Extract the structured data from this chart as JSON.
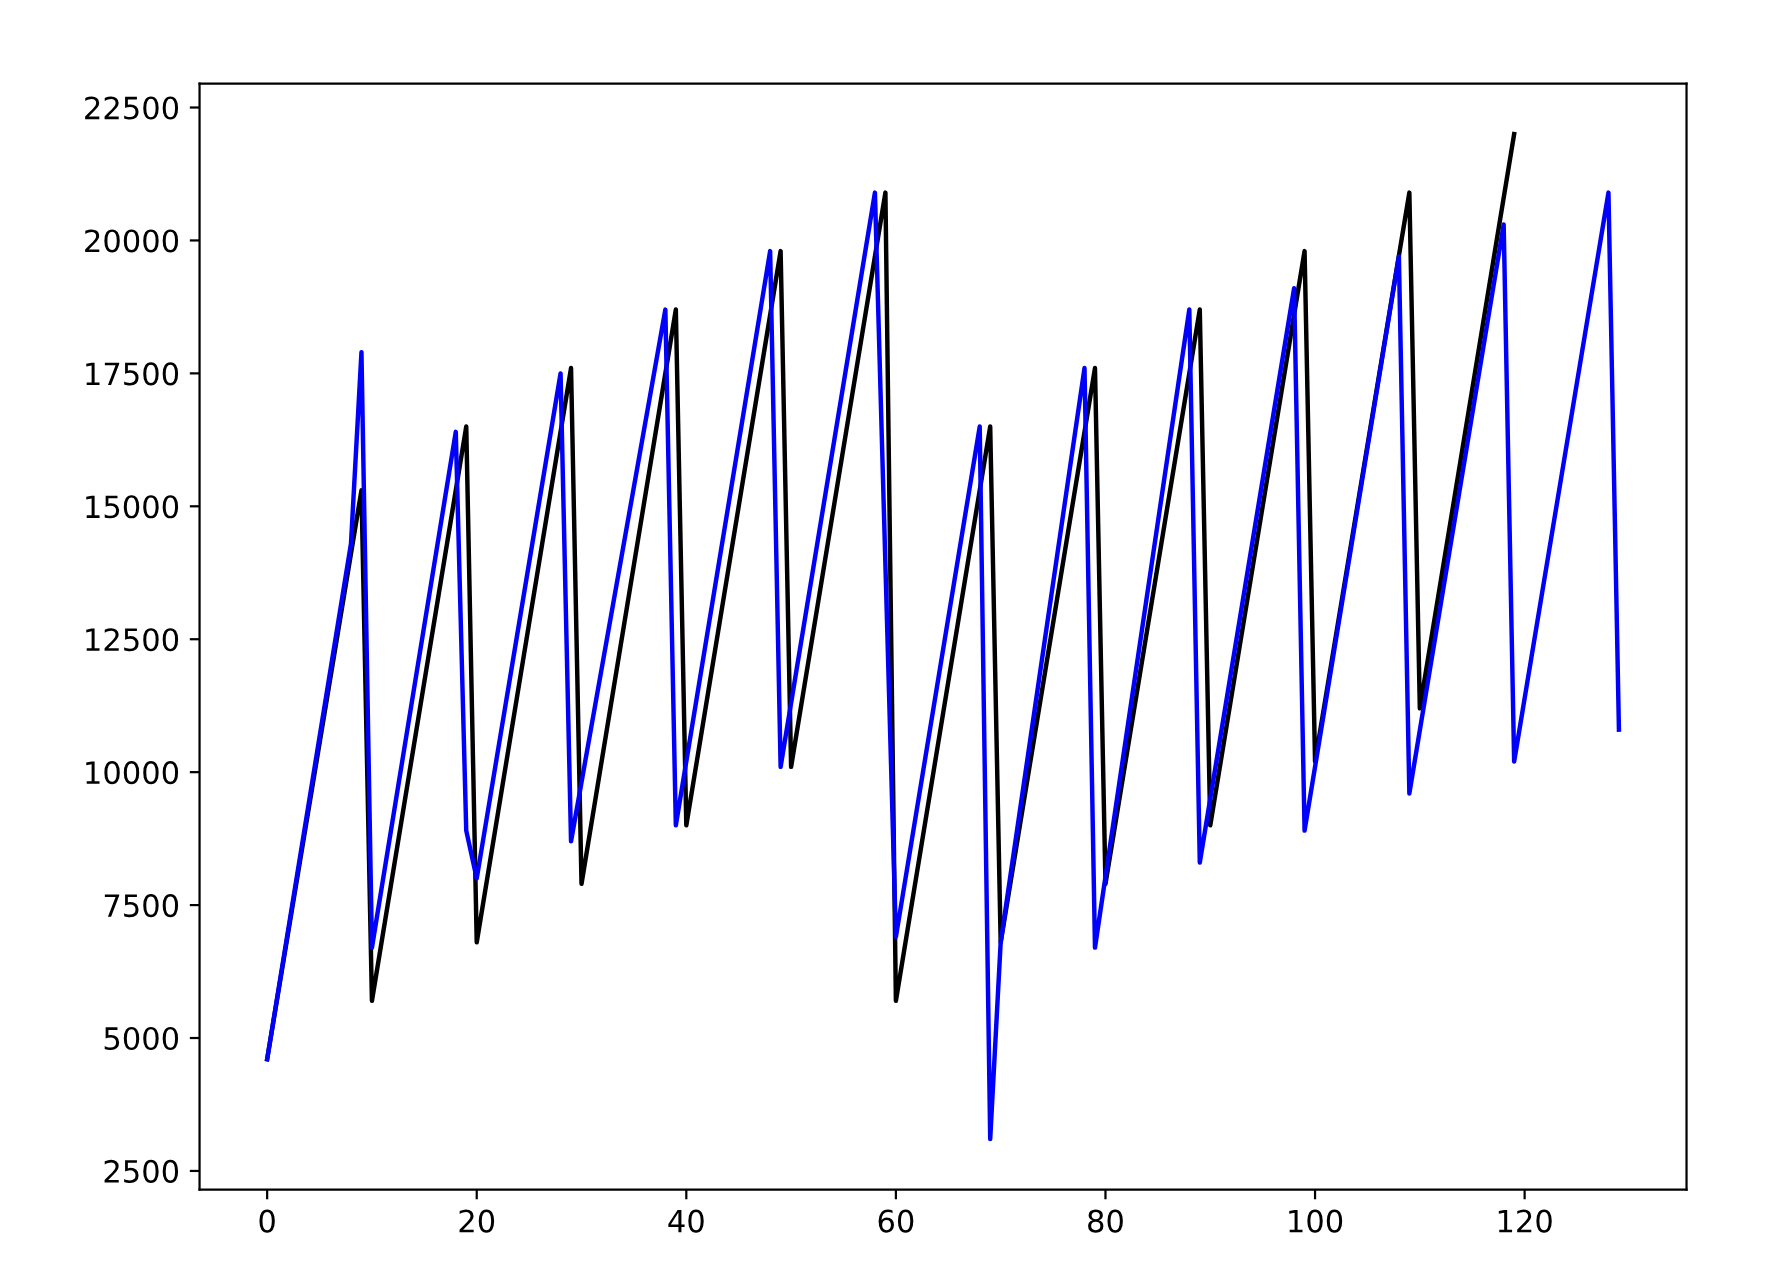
{
  "chart_data": {
    "type": "line",
    "series": [
      {
        "color": "#000000",
        "x": [
          0,
          9,
          10,
          19,
          20,
          29,
          30,
          39,
          40,
          49,
          50,
          59,
          60,
          69,
          70,
          79,
          80,
          89,
          90,
          99,
          100,
          109,
          110,
          119
        ],
        "values": [
          4600,
          15300,
          5700,
          16500,
          6800,
          17600,
          7900,
          18700,
          9000,
          19800,
          10100,
          20900,
          5700,
          16500,
          6800,
          17600,
          7900,
          18700,
          9000,
          19800,
          10200,
          20900,
          11200,
          22000
        ]
      },
      {
        "color": "#0000ff",
        "x": [
          0,
          8,
          9,
          10,
          18,
          19,
          20,
          28,
          29,
          38,
          39,
          48,
          49,
          58,
          60,
          68,
          69,
          70,
          78,
          79,
          88,
          89,
          98,
          99,
          108,
          109,
          118,
          119,
          128,
          129
        ],
        "values": [
          4600,
          14300,
          17900,
          6700,
          16400,
          8900,
          8000,
          17500,
          8700,
          18700,
          9000,
          19800,
          10100,
          20900,
          6900,
          16500,
          3100,
          6800,
          17600,
          6700,
          18700,
          8300,
          19100,
          8900,
          19700,
          9600,
          20300,
          10200,
          20900,
          10800
        ]
      }
    ],
    "xlim": [
      -6.45,
      135.45
    ],
    "xticks": [
      0,
      20,
      40,
      60,
      80,
      100,
      120
    ],
    "ylim": [
      2150,
      22950
    ],
    "yticks": [
      2500,
      5000,
      7500,
      10000,
      12500,
      15000,
      17500,
      20000,
      22500
    ],
    "grid": false,
    "legend": false
  }
}
